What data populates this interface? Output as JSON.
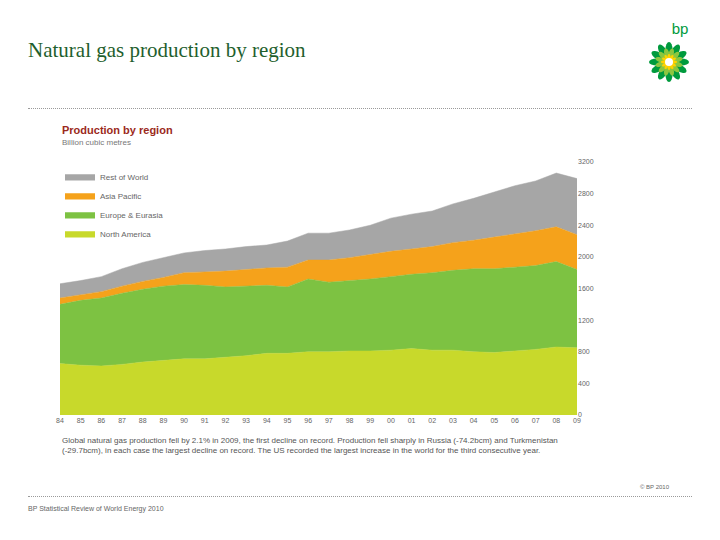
{
  "page": {
    "title": "Natural gas production by region",
    "logo_text": "bp",
    "footer_left": "BP Statistical Review of World Energy 2010",
    "footer_right": "© BP 2010"
  },
  "chart_data": {
    "type": "area",
    "stacked": true,
    "title": "Production by region",
    "subtitle": "Billion cubic metres",
    "caption": "Global natural gas production fell by 2.1% in 2009, the first decline on record. Production fell sharply in Russia (-74.2bcm) and Turkmenistan (-29.7bcm), in each case the largest decline on record. The US recorded the largest increase in the world for the third consecutive year.",
    "categories": [
      "84",
      "85",
      "86",
      "87",
      "88",
      "89",
      "90",
      "91",
      "92",
      "93",
      "94",
      "95",
      "96",
      "97",
      "98",
      "99",
      "00",
      "01",
      "02",
      "03",
      "04",
      "05",
      "06",
      "07",
      "08",
      "09"
    ],
    "series": [
      {
        "name": "North America",
        "color": "#c8d92b",
        "values": [
          650,
          630,
          620,
          640,
          670,
          690,
          710,
          710,
          730,
          750,
          780,
          780,
          800,
          800,
          810,
          810,
          820,
          840,
          820,
          820,
          800,
          790,
          810,
          830,
          860,
          850
        ]
      },
      {
        "name": "Europe & Eurasia",
        "color": "#7dc242",
        "values": [
          750,
          820,
          860,
          900,
          920,
          940,
          940,
          930,
          890,
          880,
          860,
          840,
          920,
          880,
          890,
          910,
          930,
          940,
          980,
          1010,
          1050,
          1060,
          1060,
          1060,
          1080,
          990
        ]
      },
      {
        "name": "Asia Pacific",
        "color": "#f5a21b",
        "values": [
          80,
          70,
          80,
          90,
          100,
          110,
          150,
          170,
          200,
          210,
          220,
          250,
          240,
          280,
          290,
          310,
          320,
          320,
          330,
          350,
          360,
          400,
          420,
          440,
          440,
          440
        ]
      },
      {
        "name": "Rest of World",
        "color": "#a6a6a6",
        "values": [
          180,
          180,
          190,
          220,
          240,
          250,
          250,
          270,
          280,
          290,
          290,
          330,
          340,
          340,
          350,
          370,
          420,
          440,
          450,
          490,
          530,
          570,
          610,
          630,
          680,
          710
        ]
      }
    ],
    "ylim": [
      0,
      3200
    ],
    "yticks": [
      0,
      400,
      800,
      1200,
      1600,
      2000,
      2400,
      2800,
      3200
    ],
    "grid": false,
    "legend": "top left"
  }
}
